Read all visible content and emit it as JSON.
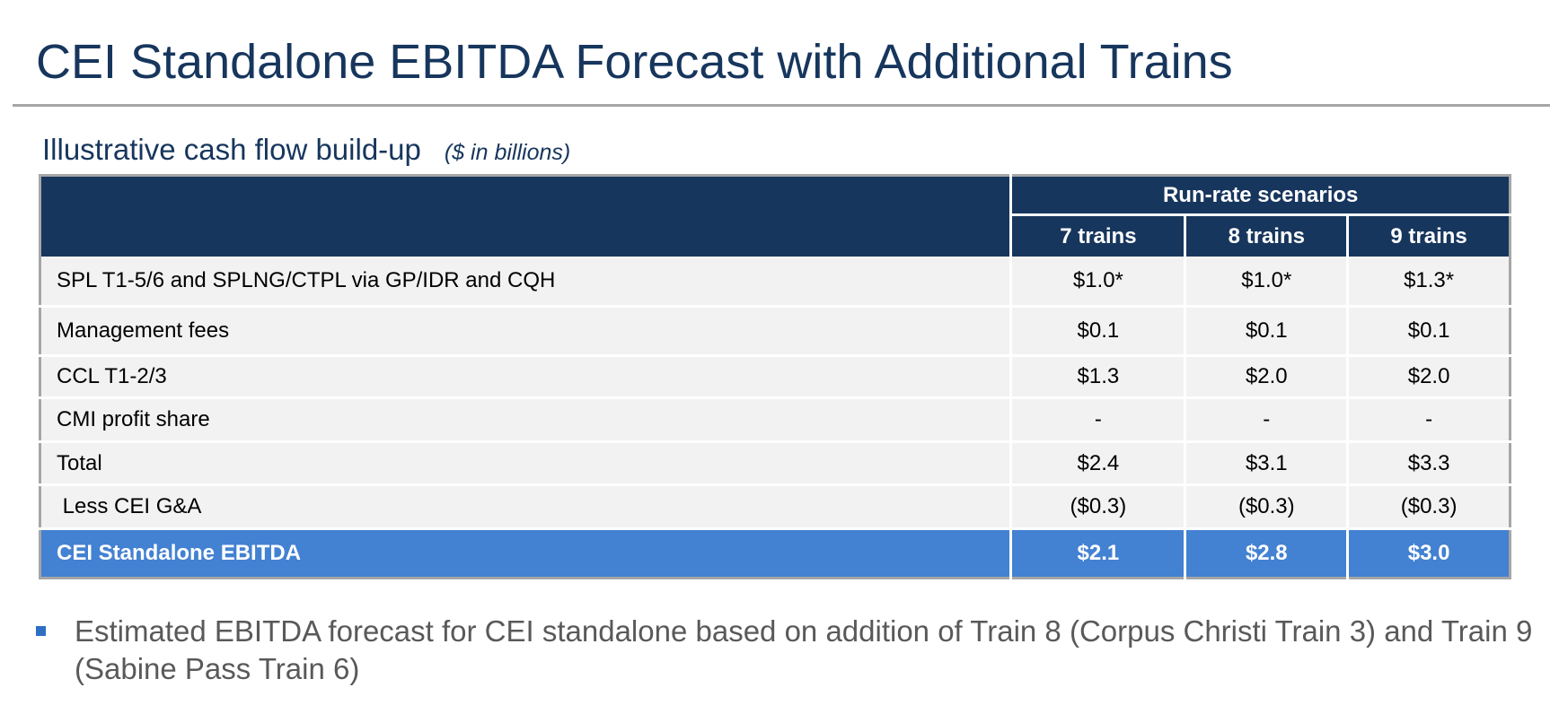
{
  "title": "CEI Standalone EBITDA Forecast with Additional Trains",
  "subtitle": {
    "main": "Illustrative cash flow build-up",
    "units": "($ in billions)"
  },
  "table": {
    "group_header": "Run-rate scenarios",
    "columns": [
      "7 trains",
      "8 trains",
      "9 trains"
    ],
    "rows": [
      {
        "label": "SPL T1-5/6 and SPLNG/CTPL via GP/IDR and CQH",
        "values": [
          "$1.0*",
          "$1.0*",
          "$1.3*"
        ]
      },
      {
        "label": "Management fees",
        "values": [
          "$0.1",
          "$0.1",
          "$0.1"
        ]
      },
      {
        "label": "CCL T1-2/3",
        "values": [
          "$1.3",
          "$2.0",
          "$2.0"
        ]
      },
      {
        "label": "CMI profit share",
        "values": [
          "-",
          "-",
          "-"
        ]
      },
      {
        "label": "Total",
        "values": [
          "$2.4",
          "$3.1",
          "$3.3"
        ]
      },
      {
        "label": " Less CEI G&A",
        "values": [
          "($0.3)",
          "($0.3)",
          "($0.3)"
        ]
      }
    ],
    "total_row": {
      "label": "CEI Standalone EBITDA",
      "values": [
        "$2.1",
        "$2.8",
        "$3.0"
      ]
    }
  },
  "bullets": [
    "Estimated EBITDA forecast for CEI standalone based on addition of Train 8 (Corpus Christi Train 3) and Train 9 (Sabine Pass Train 6)"
  ],
  "colors": {
    "title": "#17365d",
    "header_bg": "#17365d",
    "total_row_bg": "#4381d2",
    "row_bg": "#f2f2f2",
    "bullet_text": "#595959",
    "bullet_marker": "#2e6fc4"
  }
}
